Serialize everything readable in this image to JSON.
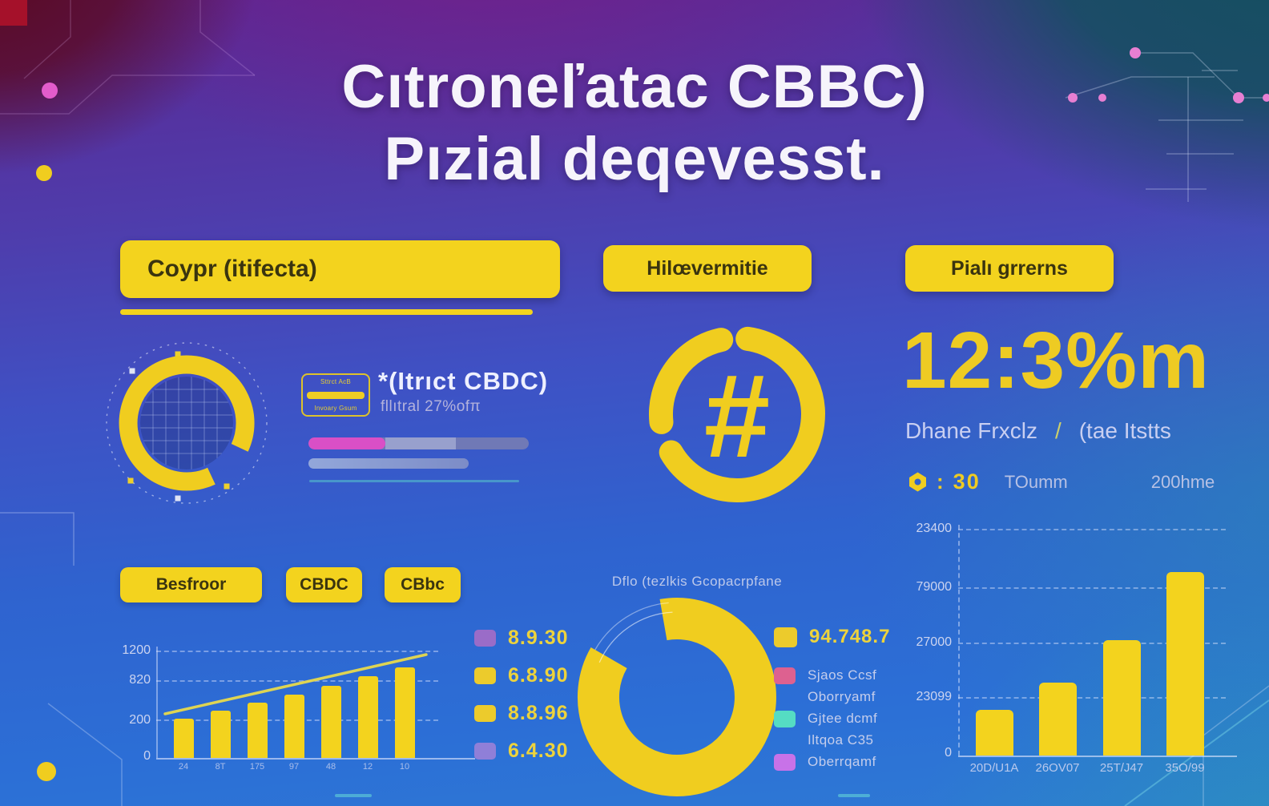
{
  "title": {
    "line1": "Cıtroneľatac CBBC)",
    "line2": "Pızial deqevesst."
  },
  "left": {
    "banner_label": "Coypr (itifecta)",
    "badge": {
      "top": "Sttrct AcB",
      "bottom": "Invoary Gsum"
    },
    "card": {
      "title": "*(Itrıct CBDC)",
      "subtitle": "fllıtral 27%ofπ"
    },
    "pills": [
      {
        "label": "Besfroor"
      },
      {
        "label": "CBDC"
      },
      {
        "label": "CBbc"
      }
    ]
  },
  "middle": {
    "banner_label": "Hilœvermitie",
    "hash_symbol": "#",
    "legend_left": [
      {
        "color": "#9a6cc8",
        "label": "8.9.30"
      },
      {
        "color": "#eccb2c",
        "label": "6.8.90"
      },
      {
        "color": "#eccb2c",
        "label": "8.8.96"
      },
      {
        "color": "#8f7fd8",
        "label": "6.4.30"
      }
    ],
    "legend_right": [
      {
        "color": "#eccb2c",
        "label": "94.748.7"
      },
      {
        "color": "#dd6190",
        "label": "Sjaos Ccsf"
      },
      {
        "color": null,
        "label": "Oborryamf"
      },
      {
        "color": "#55dcc3",
        "label": "Gjtee dcmf"
      },
      {
        "color": null,
        "label": "Iltqoa C35"
      },
      {
        "color": "#c872e8",
        "label": "Oberrqamf"
      }
    ]
  },
  "right": {
    "banner_label": "Pialı grrerns",
    "big_stat": "12:3%m",
    "subtitle": {
      "left": "Dhane Frxclz",
      "separator": "/",
      "right": "(tae Itstts"
    },
    "meta": {
      "colon": ":",
      "value": "30",
      "label_a": "TOumm",
      "label_b": "200hme"
    }
  },
  "chart_data": [
    {
      "type": "bar",
      "name": "left-growth-chart",
      "categories": [
        "24",
        "8T",
        "175",
        "97",
        "48",
        "12",
        "10"
      ],
      "values": [
        450,
        545,
        635,
        725,
        825,
        935,
        1035
      ],
      "ylim": [
        0,
        1200
      ],
      "yticks": [
        "1200",
        "820",
        "200",
        "0"
      ],
      "trendline": true,
      "bar_color": "#f3d31e"
    },
    {
      "type": "donut",
      "name": "center-share-donut",
      "title": "Dflo (tezlkis Gcopacrpfane",
      "slices": [
        {
          "label": "94.748.7",
          "value": 86,
          "color": "#f0cd1f"
        }
      ],
      "gap_percent": 14,
      "legend_position": "both-sides"
    },
    {
      "type": "bar",
      "name": "right-volume-chart",
      "categories": [
        "20D/U1A",
        "26OV07",
        "25T/J47",
        "35O/99"
      ],
      "values_rel": [
        0.2,
        0.32,
        0.51,
        0.81
      ],
      "yticks": [
        "23400",
        "79000",
        "27000",
        "23099",
        "0"
      ],
      "bar_color": "#f3d31e"
    }
  ],
  "colors": {
    "accent_yellow": "#f3d31e",
    "pink_progress": "#d94fc6",
    "progress_track": "#7079b6",
    "teal": "#55dcc3",
    "pink_node": "#e77fd2",
    "red_corner": "#a5112a"
  }
}
